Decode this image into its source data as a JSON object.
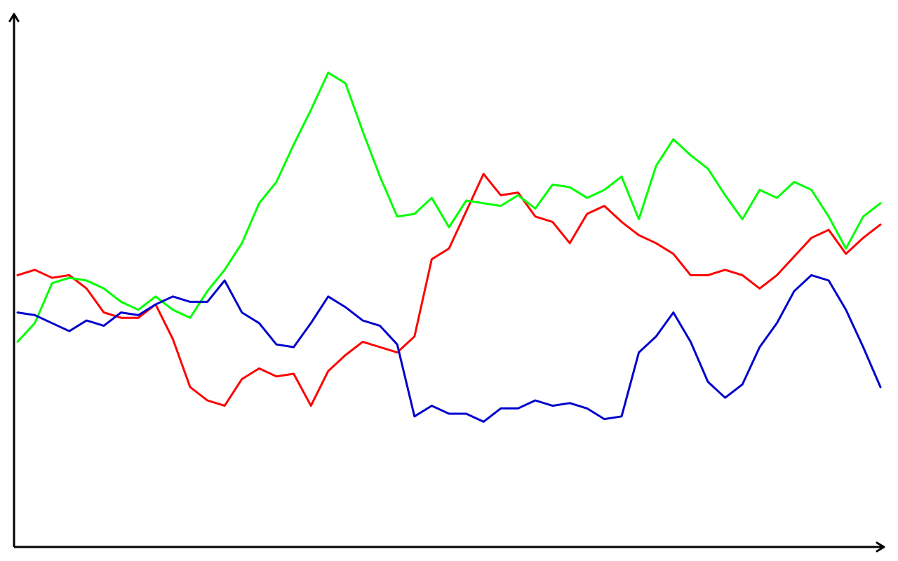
{
  "chart_data": {
    "type": "line",
    "title": "",
    "xlabel": "",
    "ylabel": "",
    "grid": false,
    "legend": "none",
    "x": [
      0,
      5,
      10,
      15,
      20,
      25,
      30,
      35,
      40,
      45,
      50,
      55,
      60,
      65,
      70,
      75,
      80,
      85,
      90,
      95,
      100,
      105,
      110,
      115,
      120,
      125,
      130,
      135,
      140,
      145,
      150,
      155,
      160,
      165,
      170,
      175,
      180,
      185,
      190,
      195,
      200,
      205,
      210,
      215,
      220,
      225,
      230,
      235,
      240,
      245,
      250
    ],
    "xlim": [
      0,
      250
    ],
    "ylim": [
      0,
      100
    ],
    "series": [
      {
        "color": "#ff0000",
        "values": [
          51.0,
          52.0,
          50.5,
          51.0,
          48.5,
          44.0,
          43.0,
          43.0,
          45.5,
          39.0,
          30.0,
          27.5,
          26.5,
          31.5,
          33.5,
          32.0,
          32.5,
          26.5,
          33.0,
          36.0,
          38.5,
          37.5,
          36.5,
          39.5,
          54.0,
          56.0,
          63.0,
          70.0,
          66.0,
          66.5,
          62.0,
          61.0,
          57.0,
          62.5,
          64.0,
          61.0,
          58.5,
          57.0,
          55.0,
          51.0,
          51.0,
          52.0,
          51.0,
          48.5,
          51.0,
          54.5,
          58.0,
          59.5,
          55.0,
          58.0,
          60.5
        ]
      },
      {
        "color": "#00ff00",
        "values": [
          38.5,
          42.0,
          49.5,
          50.5,
          50.0,
          48.5,
          46.0,
          44.5,
          47.0,
          44.5,
          43.0,
          48.0,
          52.0,
          57.0,
          64.5,
          68.5,
          75.5,
          82.0,
          89.0,
          87.0,
          78.0,
          69.5,
          62.0,
          62.5,
          65.5,
          60.0,
          65.0,
          64.5,
          64.0,
          66.0,
          63.5,
          68.0,
          67.5,
          65.5,
          67.0,
          69.5,
          61.5,
          71.5,
          76.5,
          73.5,
          71.0,
          66.0,
          61.5,
          67.0,
          65.5,
          68.5,
          67.0,
          62.0,
          56.0,
          62.0,
          64.5
        ]
      },
      {
        "color": "#0000cc",
        "values": [
          44.0,
          43.5,
          42.0,
          40.5,
          42.5,
          41.5,
          44.0,
          43.5,
          45.5,
          47.0,
          46.0,
          46.0,
          50.0,
          44.0,
          42.0,
          38.0,
          37.5,
          42.0,
          47.0,
          45.0,
          42.5,
          41.5,
          38.0,
          24.5,
          26.5,
          25.0,
          25.0,
          23.5,
          26.0,
          26.0,
          27.5,
          26.5,
          27.0,
          26.0,
          24.0,
          24.5,
          36.5,
          39.5,
          44.0,
          38.5,
          31.0,
          28.0,
          30.5,
          37.5,
          42.0,
          48.0,
          51.0,
          50.0,
          44.5,
          37.5,
          30.0
        ]
      }
    ]
  }
}
